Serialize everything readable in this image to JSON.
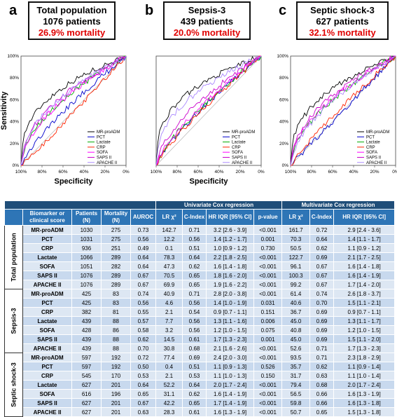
{
  "panels": [
    {
      "letter": "a",
      "title": "Total population",
      "patients": "1076 patients",
      "mortality": "26.9% mortality"
    },
    {
      "letter": "b",
      "title": "Sepsis-3",
      "patients": "439 patients",
      "mortality": "20.0% mortality"
    },
    {
      "letter": "c",
      "title": "Septic shock-3",
      "patients": "627 patients",
      "mortality": "32.1% mortality"
    }
  ],
  "chart_data": [
    {
      "type": "line",
      "ylabel": "Sensitivity",
      "xlabel": "Specificity",
      "x_ticks": [
        "100%",
        "80%",
        "60%",
        "40%",
        "20%",
        "0%"
      ],
      "y_ticks": [
        "0%",
        "20%",
        "40%",
        "60%",
        "80%",
        "100%"
      ],
      "legend": [
        "MR-proADM",
        "PCT",
        "Lactate",
        "CRP",
        "SOFA",
        "SAPS II",
        "APACHE II"
      ],
      "series_colors": [
        "#000000",
        "#0000cc",
        "#00aa00",
        "#ff2200",
        "#ff00ff",
        "#cc00cc",
        "#aa88ff"
      ],
      "auroc": [
        0.73,
        0.56,
        0.64,
        0.49,
        0.64,
        0.67,
        0.67
      ]
    },
    {
      "type": "line",
      "ylabel": "",
      "xlabel": "Specificity",
      "x_ticks": [
        "100%",
        "80%",
        "60%",
        "40%",
        "20%",
        "0%"
      ],
      "y_ticks": [],
      "legend": [
        "MR-proADM",
        "PCT",
        "Lactate",
        "CRP",
        "SOFA",
        "SAPS II",
        "APACHE II"
      ],
      "series_colors": [
        "#000000",
        "#0000cc",
        "#00aa00",
        "#ff2200",
        "#ff00ff",
        "#cc00cc",
        "#aa88ff"
      ],
      "auroc": [
        0.74,
        0.56,
        0.57,
        0.55,
        0.58,
        0.62,
        0.7
      ]
    },
    {
      "type": "line",
      "ylabel": "",
      "xlabel": "",
      "x_ticks": [
        "100%",
        "80%",
        "60%",
        "40%",
        "20%",
        "0%"
      ],
      "y_ticks": [
        "0%",
        "20%",
        "40%",
        "60%",
        "80%",
        "100%"
      ],
      "legend": [
        "MR-proADM",
        "PCT",
        "Lactate",
        "CRP",
        "SOFA",
        "SAPS II",
        "APACHE II"
      ],
      "series_colors": [
        "#000000",
        "#0000cc",
        "#00aa00",
        "#ff2200",
        "#ff00ff",
        "#cc00cc",
        "#aa88ff"
      ],
      "auroc": [
        0.72,
        0.5,
        0.64,
        0.53,
        0.65,
        0.67,
        0.63
      ]
    }
  ],
  "table": {
    "group_univariate": "Univariate Cox regression",
    "group_multivariate": "Multivariate Cox regression",
    "headers": [
      "Biomarker or clinical score",
      "Patients (N)",
      "Mortality (N)",
      "AUROC",
      "LR χ²",
      "C-Index",
      "HR IQR [95% CI]",
      "p-value",
      "LR χ²",
      "C-Index",
      "HR IQR [95% CI]"
    ],
    "sections": [
      {
        "name": "Total population",
        "rows": [
          [
            "MR-proADM",
            "1030",
            "275",
            "0.73",
            "142.7",
            "0.71",
            "3.2 [2.6 - 3.9]",
            "<0.001",
            "161.7",
            "0.72",
            "2.9 [2.4 - 3.6]"
          ],
          [
            "PCT",
            "1031",
            "275",
            "0.56",
            "12.2",
            "0.56",
            "1.4 [1.2 - 1.7]",
            "0.001",
            "70.3",
            "0.64",
            "1.4 [1.1 - 1.7]"
          ],
          [
            "CRP",
            "936",
            "251",
            "0.49",
            "0.1",
            "0.51",
            "1.0 [0.9 - 1.2]",
            "0.730",
            "50.5",
            "0.62",
            "1.1 [0.9 - 1.2]"
          ],
          [
            "Lactate",
            "1066",
            "289",
            "0.64",
            "78.3",
            "0.64",
            "2.2 [1.8 - 2.5]",
            "<0.001",
            "122.7",
            "0.69",
            "2.1 [1.7 - 2.5]"
          ],
          [
            "SOFA",
            "1051",
            "282",
            "0.64",
            "47.3",
            "0.62",
            "1.6 [1.4 - 1.8]",
            "<0.001",
            "96.1",
            "0.67",
            "1.6 [1.4 - 1.8]"
          ],
          [
            "SAPS II",
            "1076",
            "289",
            "0.67",
            "70.5",
            "0.65",
            "1.8 [1.6 - 2.0]",
            "<0.001",
            "100.3",
            "0.67",
            "1.6 [1.4 - 1.9]"
          ],
          [
            "APACHE II",
            "1076",
            "289",
            "0.67",
            "69.9",
            "0.65",
            "1.9 [1.6 - 2.2]",
            "<0.001",
            "99.2",
            "0.67",
            "1.7 [1.4 - 2.0]"
          ]
        ]
      },
      {
        "name": "Sepsis-3",
        "rows": [
          [
            "MR-proADM",
            "425",
            "83",
            "0.74",
            "40.9",
            "0.71",
            "2.8 [2.0 - 3.8]",
            "<0.001",
            "61.4",
            "0.74",
            "2.6 [1.8 - 3.7]"
          ],
          [
            "PCT",
            "425",
            "83",
            "0.56",
            "4.6",
            "0.56",
            "1.4 [1.0 - 1.9]",
            "0.031",
            "40.6",
            "0.70",
            "1.5 [1.1 - 2.1]"
          ],
          [
            "CRP",
            "382",
            "81",
            "0.55",
            "2.1",
            "0.54",
            "0.9 [0.7 - 1.1]",
            "0.151",
            "36.7",
            "0.69",
            "0.9 [0.7 - 1.1]"
          ],
          [
            "Lactate",
            "439",
            "88",
            "0.57",
            "7.7",
            "0.56",
            "1.3 [1.1 - 1.6]",
            "0.006",
            "45.0",
            "0.69",
            "1.3 [1.1 - 1.7]"
          ],
          [
            "SOFA",
            "428",
            "86",
            "0.58",
            "3.2",
            "0.56",
            "1.2 [1.0 - 1.5]",
            "0.075",
            "40.8",
            "0.69",
            "1.2 [1.0 - 1.5]"
          ],
          [
            "SAPS II",
            "439",
            "88",
            "0.62",
            "14.5",
            "0.61",
            "1.7 [1.3 - 2.3]",
            "0.001",
            "45.0",
            "0.69",
            "1.5 [1.1 - 2.0]"
          ],
          [
            "APACHE II",
            "439",
            "88",
            "0.70",
            "30.8",
            "0.68",
            "2.1 [1.6 - 2.6]",
            "<0.001",
            "52.6",
            "0.71",
            "1.7 [1.3 - 2.3]"
          ]
        ]
      },
      {
        "name": "Septic shock-3",
        "rows": [
          [
            "MR-proADM",
            "597",
            "192",
            "0.72",
            "77.4",
            "0.69",
            "2.4 [2.0 - 3.0]",
            "<0.001",
            "93.5",
            "0.71",
            "2.3 [1.8 - 2.9]"
          ],
          [
            "PCT",
            "597",
            "192",
            "0.50",
            "0.4",
            "0.51",
            "1.1 [0.9 - 1.3]",
            "0.526",
            "35.7",
            "0.62",
            "1.1 [0.9 - 1.4]"
          ],
          [
            "CRP",
            "545",
            "170",
            "0.53",
            "2.1",
            "0.53",
            "1.1 [1.0 - 1.3]",
            "0.150",
            "31.7",
            "0.63",
            "1.1 [1.0 - 1.4]"
          ],
          [
            "Lactate",
            "627",
            "201",
            "0.64",
            "52.2",
            "0.64",
            "2.0 [1.7 - 2.4]",
            "<0.001",
            "79.4",
            "0.68",
            "2.0 [1.7 - 2.4]"
          ],
          [
            "SOFA",
            "616",
            "196",
            "0.65",
            "31.1",
            "0.62",
            "1.6 [1.4 - 1.9]",
            "<0.001",
            "56.5",
            "0.66",
            "1.6 [1.3 - 1.9]"
          ],
          [
            "SAPS II",
            "627",
            "201",
            "0.67",
            "42.2",
            "0.65",
            "1.7 [1.4 - 1.9]",
            "<0.001",
            "59.8",
            "0.66",
            "1.6 [1.3 - 1.8]"
          ],
          [
            "APACHE II",
            "627",
            "201",
            "0.63",
            "28.3",
            "0.61",
            "1.6 [1.3 - 1.9]",
            "<0.001",
            "50.7",
            "0.65",
            "1.5 [1.3 - 1.8]"
          ]
        ]
      }
    ]
  }
}
